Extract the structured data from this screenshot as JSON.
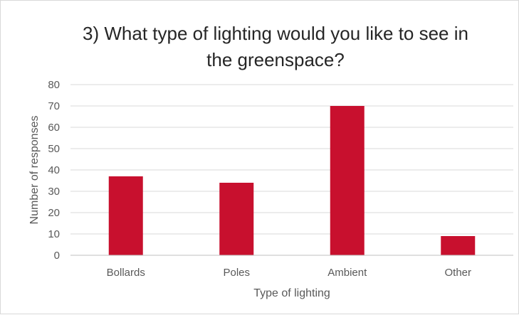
{
  "chart_data": {
    "type": "bar",
    "title_lines": [
      "3) What type of lighting would you like to see in",
      "the greenspace?"
    ],
    "categories": [
      "Bollards",
      "Poles",
      "Ambient",
      "Other"
    ],
    "values": [
      37,
      34,
      70,
      9
    ],
    "xlabel": "Type of lighting",
    "ylabel": "Number of responses",
    "ylim": [
      0,
      80
    ],
    "yticks": [
      0,
      10,
      20,
      30,
      40,
      50,
      60,
      70,
      80
    ],
    "grid": true,
    "legend": "none",
    "bar_color": "#c8102e"
  }
}
